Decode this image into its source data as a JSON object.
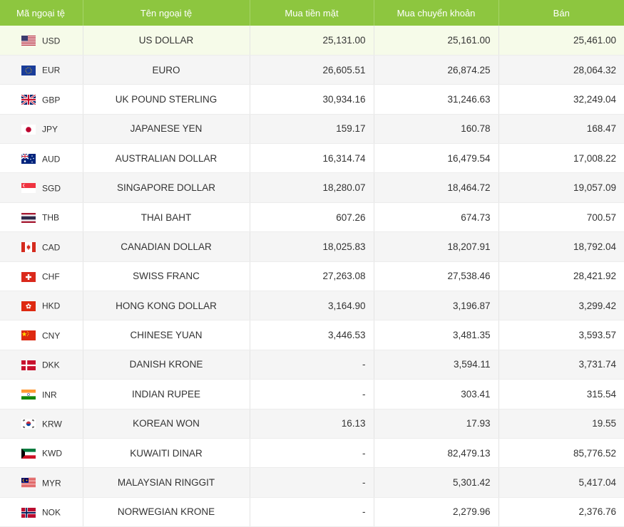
{
  "headers": {
    "code": "Mã ngoại tệ",
    "name": "Tên ngoại tệ",
    "cash_buy": "Mua tiền mặt",
    "transfer_buy": "Mua chuyển khoản",
    "sell": "Bán"
  },
  "rows": [
    {
      "code": "USD",
      "name": "US DOLLAR",
      "cash_buy": "25,131.00",
      "transfer_buy": "25,161.00",
      "sell": "25,461.00",
      "flag_icon": "us-flag-icon"
    },
    {
      "code": "EUR",
      "name": "EURO",
      "cash_buy": "26,605.51",
      "transfer_buy": "26,874.25",
      "sell": "28,064.32",
      "flag_icon": "eu-flag-icon"
    },
    {
      "code": "GBP",
      "name": "UK POUND STERLING",
      "cash_buy": "30,934.16",
      "transfer_buy": "31,246.63",
      "sell": "32,249.04",
      "flag_icon": "uk-flag-icon"
    },
    {
      "code": "JPY",
      "name": "JAPANESE YEN",
      "cash_buy": "159.17",
      "transfer_buy": "160.78",
      "sell": "168.47",
      "flag_icon": "japan-flag-icon"
    },
    {
      "code": "AUD",
      "name": "AUSTRALIAN DOLLAR",
      "cash_buy": "16,314.74",
      "transfer_buy": "16,479.54",
      "sell": "17,008.22",
      "flag_icon": "australia-flag-icon"
    },
    {
      "code": "SGD",
      "name": "SINGAPORE DOLLAR",
      "cash_buy": "18,280.07",
      "transfer_buy": "18,464.72",
      "sell": "19,057.09",
      "flag_icon": "singapore-flag-icon"
    },
    {
      "code": "THB",
      "name": "THAI BAHT",
      "cash_buy": "607.26",
      "transfer_buy": "674.73",
      "sell": "700.57",
      "flag_icon": "thailand-flag-icon"
    },
    {
      "code": "CAD",
      "name": "CANADIAN DOLLAR",
      "cash_buy": "18,025.83",
      "transfer_buy": "18,207.91",
      "sell": "18,792.04",
      "flag_icon": "canada-flag-icon"
    },
    {
      "code": "CHF",
      "name": "SWISS FRANC",
      "cash_buy": "27,263.08",
      "transfer_buy": "27,538.46",
      "sell": "28,421.92",
      "flag_icon": "switzerland-flag-icon"
    },
    {
      "code": "HKD",
      "name": "HONG KONG DOLLAR",
      "cash_buy": "3,164.90",
      "transfer_buy": "3,196.87",
      "sell": "3,299.42",
      "flag_icon": "hong-kong-flag-icon"
    },
    {
      "code": "CNY",
      "name": "CHINESE YUAN",
      "cash_buy": "3,446.53",
      "transfer_buy": "3,481.35",
      "sell": "3,593.57",
      "flag_icon": "china-flag-icon"
    },
    {
      "code": "DKK",
      "name": "DANISH KRONE",
      "cash_buy": "-",
      "transfer_buy": "3,594.11",
      "sell": "3,731.74",
      "flag_icon": "denmark-flag-icon"
    },
    {
      "code": "INR",
      "name": "INDIAN RUPEE",
      "cash_buy": "-",
      "transfer_buy": "303.41",
      "sell": "315.54",
      "flag_icon": "india-flag-icon"
    },
    {
      "code": "KRW",
      "name": "KOREAN WON",
      "cash_buy": "16.13",
      "transfer_buy": "17.93",
      "sell": "19.55",
      "flag_icon": "korea-flag-icon"
    },
    {
      "code": "KWD",
      "name": "KUWAITI DINAR",
      "cash_buy": "-",
      "transfer_buy": "82,479.13",
      "sell": "85,776.52",
      "flag_icon": "kuwait-flag-icon"
    },
    {
      "code": "MYR",
      "name": "MALAYSIAN RINGGIT",
      "cash_buy": "-",
      "transfer_buy": "5,301.42",
      "sell": "5,417.04",
      "flag_icon": "malaysia-flag-icon"
    },
    {
      "code": "NOK",
      "name": "NORWEGIAN KRONE",
      "cash_buy": "-",
      "transfer_buy": "2,279.96",
      "sell": "2,376.76",
      "flag_icon": "norway-flag-icon"
    }
  ],
  "colors": {
    "header_bg": "#8dc63f",
    "header_text": "#ffffff",
    "highlight_row": "#f6fbe9",
    "stripe_row": "#f5f5f5"
  }
}
